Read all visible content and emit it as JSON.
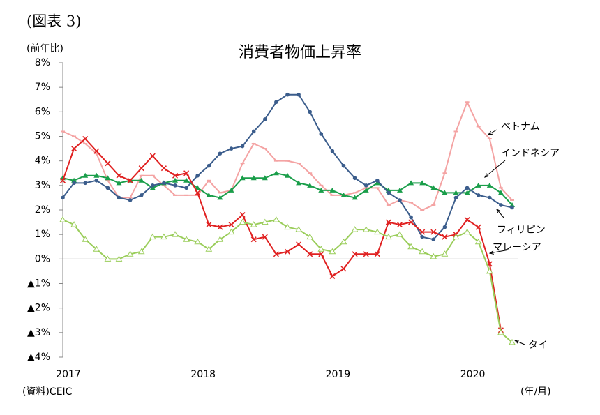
{
  "chart_data": {
    "type": "line",
    "figure_label": "(図表 3)",
    "title": "消費者物価上昇率",
    "y_axis_label": "(前年比)",
    "x_axis_label": "(年/月)",
    "source": "(資料)CEIC",
    "categories": [
      "2017",
      null,
      null,
      null,
      null,
      null,
      null,
      null,
      null,
      null,
      null,
      null,
      "2018",
      null,
      null,
      null,
      null,
      null,
      null,
      null,
      null,
      null,
      null,
      null,
      "2019",
      null,
      null,
      null,
      null,
      null,
      null,
      null,
      null,
      null,
      null,
      null,
      "2020",
      null,
      null,
      null,
      null
    ],
    "ylim": [
      -4,
      8
    ],
    "yticks": [
      {
        "value": 8,
        "label": "8%"
      },
      {
        "value": 7,
        "label": "7%"
      },
      {
        "value": 6,
        "label": "6%"
      },
      {
        "value": 5,
        "label": "5%"
      },
      {
        "value": 4,
        "label": "4%"
      },
      {
        "value": 3,
        "label": "3%"
      },
      {
        "value": 2,
        "label": "2%"
      },
      {
        "value": 1,
        "label": "1%"
      },
      {
        "value": 0,
        "label": "0%"
      },
      {
        "value": -1,
        "label": "▲1%"
      },
      {
        "value": -2,
        "label": "▲2%"
      },
      {
        "value": -3,
        "label": "▲3%"
      },
      {
        "value": -4,
        "label": "▲4%"
      }
    ],
    "series": [
      {
        "name": "ベトナム",
        "color": "#f4a3a3",
        "marker": "dash",
        "values": [
          5.2,
          5.0,
          4.7,
          4.3,
          3.2,
          2.5,
          2.5,
          3.4,
          3.4,
          3.0,
          2.6,
          2.6,
          2.6,
          3.2,
          2.7,
          2.8,
          3.9,
          4.7,
          4.5,
          4.0,
          4.0,
          3.9,
          3.5,
          3.0,
          2.6,
          2.6,
          2.7,
          2.9,
          2.9,
          2.2,
          2.4,
          2.3,
          2.0,
          2.2,
          3.5,
          5.2,
          6.4,
          5.4,
          4.9,
          2.9,
          2.4
        ]
      },
      {
        "name": "インドネシア",
        "color": "#1a9e4a",
        "marker": "triangle",
        "values": [
          3.3,
          3.2,
          3.4,
          3.4,
          3.3,
          3.1,
          3.2,
          3.2,
          2.9,
          3.1,
          3.2,
          3.2,
          2.9,
          2.6,
          2.5,
          2.8,
          3.3,
          3.3,
          3.3,
          3.5,
          3.4,
          3.1,
          3.0,
          2.8,
          2.8,
          2.6,
          2.5,
          2.8,
          3.1,
          2.8,
          2.8,
          3.1,
          3.1,
          2.9,
          2.7,
          2.7,
          2.7,
          3.0,
          3.0,
          2.7,
          2.2
        ]
      },
      {
        "name": "フィリピン",
        "color": "#3b5d8c",
        "marker": "circle",
        "values": [
          2.5,
          3.1,
          3.1,
          3.2,
          2.9,
          2.5,
          2.4,
          2.6,
          3.0,
          3.1,
          3.0,
          2.9,
          3.4,
          3.8,
          4.3,
          4.5,
          4.6,
          5.2,
          5.7,
          6.4,
          6.7,
          6.7,
          6.0,
          5.1,
          4.4,
          3.8,
          3.3,
          3.0,
          3.2,
          2.7,
          2.4,
          1.7,
          0.9,
          0.8,
          1.3,
          2.5,
          2.9,
          2.6,
          2.5,
          2.2,
          2.1
        ]
      },
      {
        "name": "マレーシア",
        "color": "#e02020",
        "marker": "cross",
        "values": [
          3.2,
          4.5,
          4.9,
          4.4,
          3.9,
          3.4,
          3.2,
          3.7,
          4.2,
          3.7,
          3.4,
          3.5,
          2.7,
          1.4,
          1.3,
          1.4,
          1.8,
          0.8,
          0.9,
          0.2,
          0.3,
          0.6,
          0.2,
          0.2,
          -0.7,
          -0.4,
          0.2,
          0.2,
          0.2,
          1.5,
          1.4,
          1.5,
          1.1,
          1.1,
          0.9,
          1.0,
          1.6,
          1.3,
          -0.2,
          -2.9,
          null
        ]
      },
      {
        "name": "タイ",
        "color": "#9acd5a",
        "marker": "open-triangle",
        "values": [
          1.6,
          1.4,
          0.8,
          0.4,
          0.0,
          0.0,
          0.2,
          0.3,
          0.9,
          0.9,
          1.0,
          0.8,
          0.7,
          0.4,
          0.8,
          1.1,
          1.5,
          1.4,
          1.5,
          1.6,
          1.3,
          1.2,
          0.9,
          0.4,
          0.3,
          0.7,
          1.2,
          1.2,
          1.1,
          0.9,
          1.0,
          0.5,
          0.3,
          0.1,
          0.2,
          0.9,
          1.1,
          0.7,
          -0.5,
          -3.0,
          -3.4
        ]
      }
    ]
  }
}
